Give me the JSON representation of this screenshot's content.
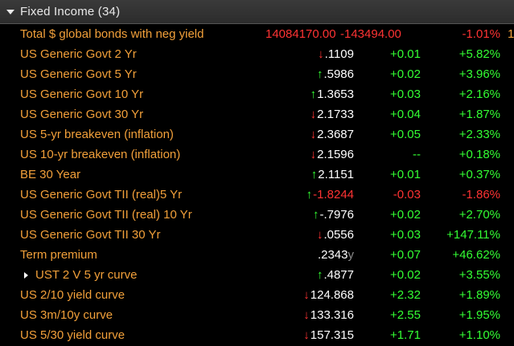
{
  "header": {
    "title": "Fixed Income (34)"
  },
  "colors": {
    "label": "#f2a03a",
    "up": "#33ff33",
    "down": "#ff3333",
    "neutral": "#ffffff"
  },
  "rows": [
    {
      "name": "Total $ global bonds with neg yield",
      "last": "14084170.00",
      "change": "-143494.00",
      "pct": "-1.01%",
      "edge": "1"
    },
    {
      "name": "US Generic Govt 2 Yr",
      "arrow": "↓",
      "last": ".1109",
      "change": "+0.01",
      "pct": "+5.82%"
    },
    {
      "name": "US Generic Govt 5 Yr",
      "arrow": "↑",
      "last": ".5986",
      "change": "+0.02",
      "pct": "+3.96%"
    },
    {
      "name": "US Generic Govt 10 Yr",
      "arrow": "↑",
      "last": "1.3653",
      "change": "+0.03",
      "pct": "+2.16%"
    },
    {
      "name": "US Generic Govt 30 Yr",
      "arrow": "↓",
      "last": "2.1733",
      "change": "+0.04",
      "pct": "+1.87%"
    },
    {
      "name": "US 5-yr breakeven (inflation)",
      "arrow": "↓",
      "last": "2.3687",
      "change": "+0.05",
      "pct": "+2.33%"
    },
    {
      "name": "US 10-yr breakeven (inflation)",
      "arrow": "↓",
      "last": "2.1596",
      "change": "--",
      "pct": "+0.18%"
    },
    {
      "name": "BE 30 Year",
      "arrow": "↑",
      "last": "2.1151",
      "change": "+0.01",
      "pct": "+0.37%"
    },
    {
      "name": "US Generic Govt TII (real)5 Yr",
      "arrow": "↑",
      "last": "-1.8244",
      "change": "-0.03",
      "pct": "-1.86%"
    },
    {
      "name": "US Generic Govt TII (real) 10 Yr",
      "arrow": "↑",
      "last": "-.7976",
      "change": "+0.02",
      "pct": "+2.70%"
    },
    {
      "name": "US Generic Govt TII 30 Yr",
      "arrow": "↓",
      "last": ".0556",
      "change": "+0.03",
      "pct": "+147.11%"
    },
    {
      "name": "Term premium",
      "last": ".2343",
      "suffix": "y",
      "change": "+0.07",
      "pct": "+46.62%"
    },
    {
      "name": "UST 2 V 5 yr curve",
      "arrow": "↑",
      "last": ".4877",
      "change": "+0.02",
      "pct": "+3.55%"
    },
    {
      "name": "US 2/10 yield curve",
      "arrow": "↓",
      "last": "124.868",
      "change": "+2.32",
      "pct": "+1.89%"
    },
    {
      "name": "US 3m/10y curve",
      "arrow": "↓",
      "last": "133.316",
      "change": "+2.55",
      "pct": "+1.95%"
    },
    {
      "name": "US 5/30 yield curve",
      "arrow": "↓",
      "last": "157.315",
      "change": "+1.71",
      "pct": "+1.10%"
    }
  ]
}
